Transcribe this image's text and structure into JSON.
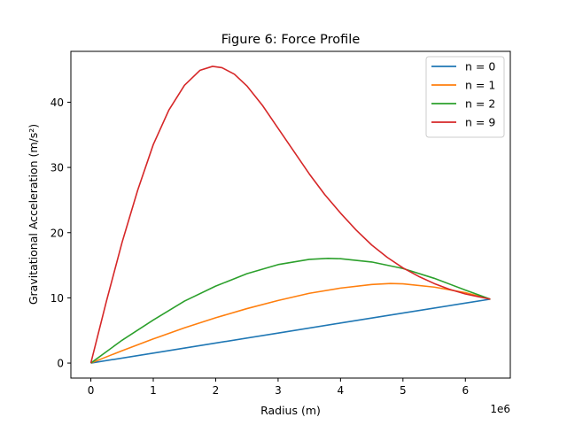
{
  "chart_data": {
    "type": "line",
    "title": "Figure 6: Force Profile",
    "xlabel": "Radius (m)",
    "ylabel": "Gravitational Acceleration (m/s²)",
    "x_offset_text": "1e6",
    "xlim": [
      -0.32,
      6.72
    ],
    "ylim": [
      -2.3,
      47.8
    ],
    "x_ticks": [
      0,
      1,
      2,
      3,
      4,
      5,
      6
    ],
    "x_tick_labels": [
      "0",
      "1",
      "2",
      "3",
      "4",
      "5",
      "6"
    ],
    "y_ticks": [
      0,
      10,
      20,
      30,
      40
    ],
    "y_tick_labels": [
      "0",
      "10",
      "20",
      "30",
      "40"
    ],
    "grid": false,
    "legend_position": "top-right",
    "series": [
      {
        "name": "n = 0",
        "color": "#1f77b4",
        "x": [
          0,
          1,
          2,
          3,
          4,
          5,
          6,
          6.4
        ],
        "y": [
          0,
          1.53,
          3.07,
          4.6,
          6.14,
          7.67,
          9.2,
          9.8
        ]
      },
      {
        "name": "n = 1",
        "color": "#ff7f0e",
        "x": [
          0,
          0.5,
          1,
          1.5,
          2,
          2.5,
          3,
          3.5,
          4,
          4.5,
          4.8,
          5,
          5.5,
          6,
          6.4
        ],
        "y": [
          0,
          1.9,
          3.7,
          5.4,
          6.95,
          8.35,
          9.6,
          10.7,
          11.5,
          12.05,
          12.2,
          12.15,
          11.65,
          10.8,
          9.8
        ]
      },
      {
        "name": "n = 2",
        "color": "#2ca02c",
        "x": [
          0,
          0.5,
          1,
          1.5,
          2,
          2.5,
          3,
          3.5,
          3.8,
          4,
          4.5,
          5,
          5.5,
          6,
          6.4
        ],
        "y": [
          0,
          3.5,
          6.6,
          9.5,
          11.8,
          13.7,
          15.1,
          15.9,
          16.05,
          16.0,
          15.5,
          14.5,
          13.0,
          11.2,
          9.8
        ]
      },
      {
        "name": "n = 9",
        "color": "#d62728",
        "x": [
          0,
          0.25,
          0.5,
          0.75,
          1,
          1.25,
          1.5,
          1.75,
          1.95,
          2.1,
          2.3,
          2.5,
          2.75,
          3,
          3.25,
          3.5,
          3.75,
          4,
          4.25,
          4.5,
          4.75,
          5,
          5.25,
          5.5,
          5.75,
          6,
          6.2,
          6.4
        ],
        "y": [
          0,
          9.5,
          18.5,
          26.5,
          33.5,
          38.8,
          42.6,
          44.9,
          45.5,
          45.3,
          44.3,
          42.5,
          39.5,
          36.0,
          32.5,
          29.0,
          25.8,
          23.0,
          20.4,
          18.1,
          16.2,
          14.6,
          13.3,
          12.2,
          11.3,
          10.6,
          10.2,
          9.8
        ]
      }
    ]
  }
}
